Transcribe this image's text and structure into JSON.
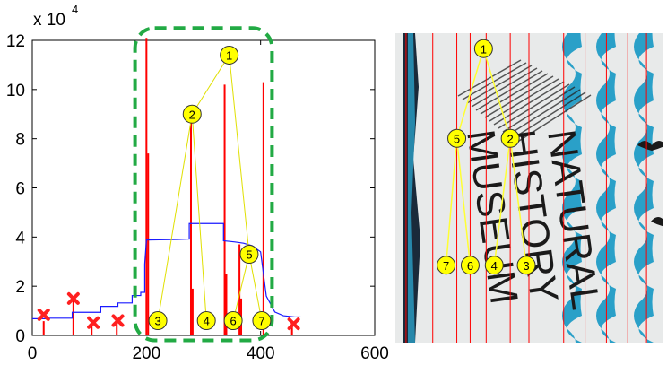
{
  "chart_data": {
    "type": "line",
    "title": "",
    "xlabel": "",
    "ylabel": "",
    "exponent_label": "x 10",
    "exponent_power": "4",
    "xlim": [
      0,
      600
    ],
    "ylim": [
      0,
      120000
    ],
    "xticks": [
      {
        "value": 0,
        "label": "0"
      },
      {
        "value": 200,
        "label": "200"
      },
      {
        "value": 400,
        "label": "400"
      },
      {
        "value": 600,
        "label": "600"
      }
    ],
    "yticks": [
      {
        "value": 0,
        "label": "0"
      },
      {
        "value": 20000,
        "label": "2"
      },
      {
        "value": 40000,
        "label": "4"
      },
      {
        "value": 60000,
        "label": "6"
      },
      {
        "value": 80000,
        "label": "8"
      },
      {
        "value": 100000,
        "label": "10"
      },
      {
        "value": 120000,
        "label": "12"
      }
    ],
    "step_profile": [
      [
        0,
        6800
      ],
      [
        30,
        6800
      ],
      [
        30,
        7000
      ],
      [
        70,
        7000
      ],
      [
        70,
        9400
      ],
      [
        120,
        9400
      ],
      [
        120,
        11800
      ],
      [
        150,
        11800
      ],
      [
        150,
        13200
      ],
      [
        175,
        13200
      ],
      [
        175,
        16200
      ],
      [
        190,
        16200
      ],
      [
        190,
        17500
      ],
      [
        197,
        17500
      ],
      [
        197,
        29000
      ],
      [
        200,
        38800
      ],
      [
        255,
        39000
      ],
      [
        275,
        39200
      ],
      [
        275,
        45500
      ],
      [
        335,
        45500
      ],
      [
        335,
        38500
      ],
      [
        355,
        38000
      ],
      [
        370,
        37500
      ],
      [
        385,
        36500
      ],
      [
        400,
        34000
      ],
      [
        410,
        16000
      ],
      [
        425,
        9500
      ],
      [
        440,
        8000
      ],
      [
        460,
        7500
      ],
      [
        470,
        7500
      ]
    ],
    "peaks": [
      {
        "x": 20,
        "y": 5800
      },
      {
        "x": 72,
        "y": 15000
      },
      {
        "x": 104,
        "y": 4500
      },
      {
        "x": 148,
        "y": 5500
      },
      {
        "x": 200,
        "y": 121000
      },
      {
        "x": 203,
        "y": 74000
      },
      {
        "x": 278,
        "y": 91000
      },
      {
        "x": 281,
        "y": 19000
      },
      {
        "x": 337,
        "y": 102000
      },
      {
        "x": 340,
        "y": 25000
      },
      {
        "x": 363,
        "y": 37000
      },
      {
        "x": 366,
        "y": 15000
      },
      {
        "x": 405,
        "y": 103000
      },
      {
        "x": 455,
        "y": 4000
      }
    ],
    "rejected_markers": [
      {
        "x": 20,
        "y": 8400
      },
      {
        "x": 72,
        "y": 15000
      },
      {
        "x": 107,
        "y": 5200
      },
      {
        "x": 150,
        "y": 6000
      },
      {
        "x": 458,
        "y": 4700
      }
    ],
    "selection_box": {
      "x0": 180,
      "x1": 420,
      "y0": -2000,
      "y1": 125000
    },
    "tree_nodes": [
      {
        "id": "1",
        "x": 345,
        "y": 114000
      },
      {
        "id": "2",
        "x": 280,
        "y": 90000
      },
      {
        "id": "3",
        "x": 220,
        "y": 6000
      },
      {
        "id": "4",
        "x": 305,
        "y": 6000
      },
      {
        "id": "5",
        "x": 380,
        "y": 33000
      },
      {
        "id": "6",
        "x": 352,
        "y": 6000
      },
      {
        "id": "7",
        "x": 402,
        "y": 6000
      }
    ],
    "tree_edges": [
      [
        "1",
        "2"
      ],
      [
        "1",
        "5"
      ],
      [
        "2",
        "3"
      ],
      [
        "2",
        "4"
      ],
      [
        "5",
        "6"
      ],
      [
        "5",
        "7"
      ]
    ],
    "colors": {
      "profile": "#1a1aff",
      "peaks": "#ff0000",
      "rejected": "#ff2020",
      "box": "#22aa44",
      "node_fill": "#ffff00",
      "edge": "#e0e000"
    }
  },
  "photo": {
    "sign_text": [
      "NATURAL",
      "HISTORY",
      "MUSEUM"
    ],
    "colors": {
      "background": "#e8eaea",
      "stripe": "#2aa0c8",
      "dark_band": "#1a2a3a",
      "vertical_lines": "#ff0000",
      "node_fill": "#ffff00",
      "edge": "#ffff33"
    },
    "tree_nodes": [
      {
        "id": "1",
        "u": 0.33,
        "v": 0.05
      },
      {
        "id": "2",
        "u": 0.43,
        "v": 0.34
      },
      {
        "id": "5",
        "u": 0.23,
        "v": 0.34
      },
      {
        "id": "7",
        "u": 0.19,
        "v": 0.75
      },
      {
        "id": "6",
        "u": 0.28,
        "v": 0.75
      },
      {
        "id": "4",
        "u": 0.37,
        "v": 0.75
      },
      {
        "id": "3",
        "u": 0.49,
        "v": 0.75
      }
    ],
    "tree_edges": [
      [
        "1",
        "2"
      ],
      [
        "1",
        "5"
      ],
      [
        "5",
        "7"
      ],
      [
        "5",
        "6"
      ],
      [
        "2",
        "4"
      ],
      [
        "2",
        "3"
      ]
    ],
    "line_positions": [
      0.04,
      0.14,
      0.23,
      0.28,
      0.34,
      0.43,
      0.5,
      0.63,
      0.71,
      0.79,
      0.87,
      0.94
    ]
  }
}
